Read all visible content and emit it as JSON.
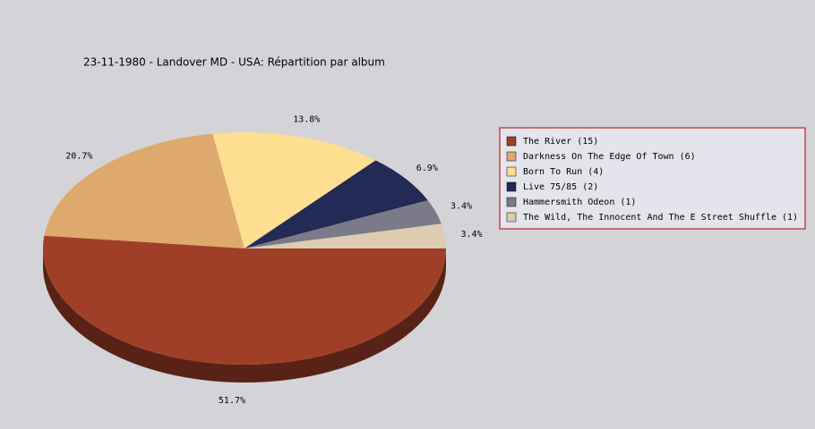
{
  "chart_data": {
    "type": "pie",
    "title": "23-11-1980 - Landover MD - USA:  Répartition par album",
    "categories": [
      "The River (15)",
      "Darkness On The Edge Of Town (6)",
      "Born To Run (4)",
      "Live 75/85 (2)",
      "Hammersmith Odeon  (1)",
      "The Wild, The Innocent And The E Street Shuffle (1)"
    ],
    "values": [
      51.7,
      20.7,
      13.8,
      6.9,
      3.4,
      3.4
    ],
    "value_labels": [
      "51.7%",
      "20.7%",
      "13.8%",
      "6.9%",
      "3.4%",
      "3.4%"
    ],
    "colors": [
      "#a03f28",
      "#dea96d",
      "#fede90",
      "#232a55",
      "#7a7a88",
      "#dcccb0"
    ],
    "legend": "right"
  }
}
